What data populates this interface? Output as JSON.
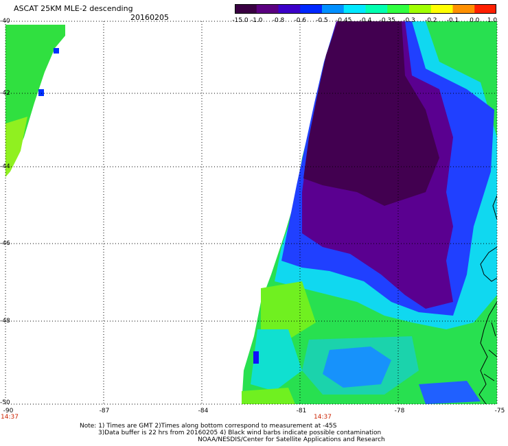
{
  "header": {
    "title": "ASCAT 25KM MLE-2 descending",
    "date": "20160205"
  },
  "colorbar": {
    "colors": [
      "#3a0042",
      "#5b0080",
      "#3c00c8",
      "#0028ff",
      "#0090ff",
      "#00e8ff",
      "#00ffb0",
      "#30ff40",
      "#a0ff00",
      "#ffff00",
      "#ff9000",
      "#ff2000"
    ],
    "labels": [
      "-15.0",
      "-1.0",
      "-0.8",
      "-0.6",
      "-0.5",
      "-0.45",
      "-0.4",
      "-0.35",
      "-0.3",
      "-0.2",
      "-0.1",
      "0.0",
      "1.0"
    ]
  },
  "axes": {
    "lat_labels": [
      "-40",
      "-42",
      "-44",
      "-46",
      "-48",
      "-50"
    ],
    "lon_labels": [
      "-90",
      "-87",
      "-84",
      "-81",
      "-78",
      "-75"
    ],
    "time_labels": [
      "14:37",
      "14:37"
    ]
  },
  "notes": {
    "line1": "Note: 1) Times are GMT 2)Times along bottom correspond to measurement at -45S",
    "line2": "3)Data buffer is 22 hrs from 20160205 4) Black wind barbs indicate possible contamination",
    "line3": "NOAA/NESDIS/Center for Satellite Applications and Research"
  }
}
